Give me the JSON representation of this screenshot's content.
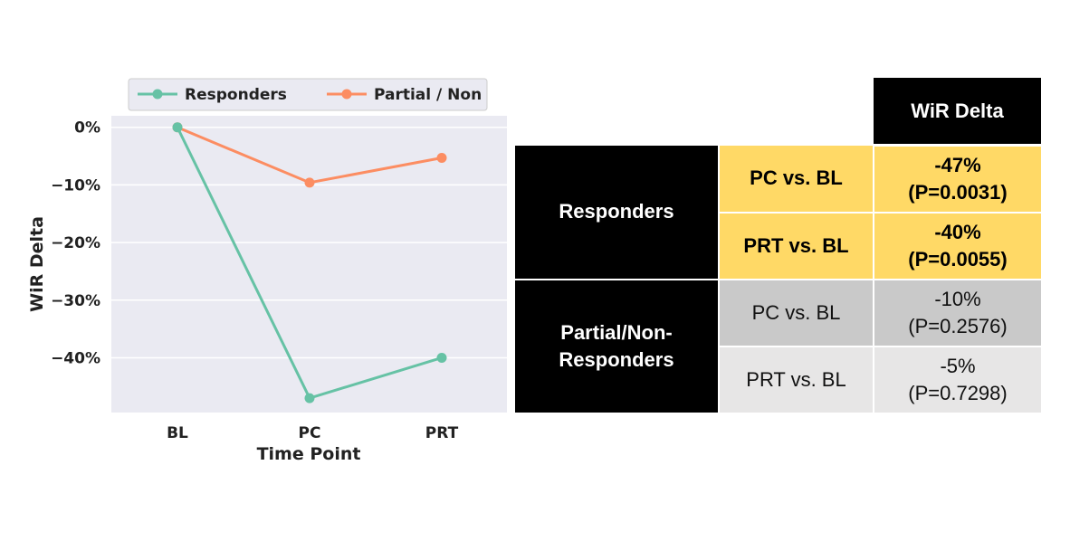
{
  "chart_data": {
    "type": "line",
    "categories": [
      "BL",
      "PC",
      "PRT"
    ],
    "series": [
      {
        "name": "Responders",
        "values": [
          0,
          -47,
          -40
        ],
        "color": "#66c2a5"
      },
      {
        "name": "Partial / Non",
        "values": [
          0,
          -9.6,
          -5.3
        ],
        "color": "#fc8d62"
      }
    ],
    "xlabel": "Time Point",
    "ylabel": "WiR Delta",
    "ylim": [
      -49.5,
      2
    ],
    "yticks": [
      0,
      -10,
      -20,
      -30,
      -40
    ],
    "ytick_labels": [
      "0%",
      "−10%",
      "−20%",
      "−30%",
      "−40%"
    ],
    "grid": true,
    "legend": "top"
  },
  "table": {
    "header": "WiR Delta",
    "groups": [
      {
        "label": "Responders",
        "rows": [
          {
            "comparison": "PC vs. BL",
            "delta": "-47%",
            "p": "(P=0.0031)"
          },
          {
            "comparison": "PRT vs. BL",
            "delta": "-40%",
            "p": "(P=0.0055)"
          }
        ]
      },
      {
        "label_line1": "Partial/Non-",
        "label_line2": "Responders",
        "rows": [
          {
            "comparison": "PC vs. BL",
            "delta": "-10%",
            "p": "(P=0.2576)"
          },
          {
            "comparison": "PRT vs. BL",
            "delta": "-5%",
            "p": "(P=0.7298)"
          }
        ]
      }
    ]
  }
}
